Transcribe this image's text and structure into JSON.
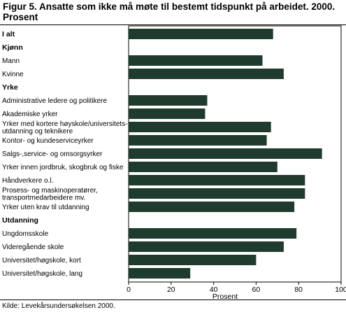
{
  "title": "Figur 5. Ansatte som ikke må møte til bestemt tidspunkt på arbeidet. 2000. Prosent",
  "source": "Kilde: Levekårsundersøkelsen 2000.",
  "colors": {
    "bar": "#1f3b2e",
    "panel": "#ffffff",
    "frame": "#000000"
  },
  "chart_data": {
    "type": "bar",
    "orientation": "horizontal",
    "title": "Figur 5. Ansatte som ikke må møte til bestemt tidspunkt på arbeidet. 2000. Prosent",
    "xlabel": "Prosent",
    "ylabel": "",
    "xlim": [
      0,
      100
    ],
    "xticks": [
      0,
      20,
      40,
      60,
      80,
      100
    ],
    "grid": false,
    "rows": [
      {
        "label": "I alt",
        "value": 68,
        "header": true
      },
      {
        "label": "Kjønn",
        "value": null,
        "header": true
      },
      {
        "label": "Mann",
        "value": 63,
        "header": false
      },
      {
        "label": "Kvinne",
        "value": 73,
        "header": false
      },
      {
        "label": "Yrke",
        "value": null,
        "header": true
      },
      {
        "label": "Administrative ledere og politikere",
        "value": 37,
        "header": false
      },
      {
        "label": "Akademiske yrker",
        "value": 36,
        "header": false
      },
      {
        "label": "Yrker med kortere høyskole/universitets-\nutdanning og teknikere",
        "value": 67,
        "header": false
      },
      {
        "label": "Kontor- og kundeserviceyrker",
        "value": 65,
        "header": false
      },
      {
        "label": "Salgs-,service- og omsorgsyrker",
        "value": 91,
        "header": false
      },
      {
        "label": "Yrker innen jordbruk, skogbruk og fiske",
        "value": 70,
        "header": false
      },
      {
        "label": "Håndverkere o.l.",
        "value": 83,
        "header": false
      },
      {
        "label": "Prosess- og maskinoperatører,\ntransportmedarbeidere mv.",
        "value": 83,
        "header": false
      },
      {
        "label": "Yrker uten krav til utdanning",
        "value": 78,
        "header": false
      },
      {
        "label": "Utdanning",
        "value": null,
        "header": true
      },
      {
        "label": "Ungdomsskole",
        "value": 79,
        "header": false
      },
      {
        "label": "Videregående skole",
        "value": 73,
        "header": false
      },
      {
        "label": "Universitet/høgskole, kort",
        "value": 60,
        "header": false
      },
      {
        "label": "Universitet/høgskole, lang",
        "value": 29,
        "header": false
      }
    ]
  }
}
